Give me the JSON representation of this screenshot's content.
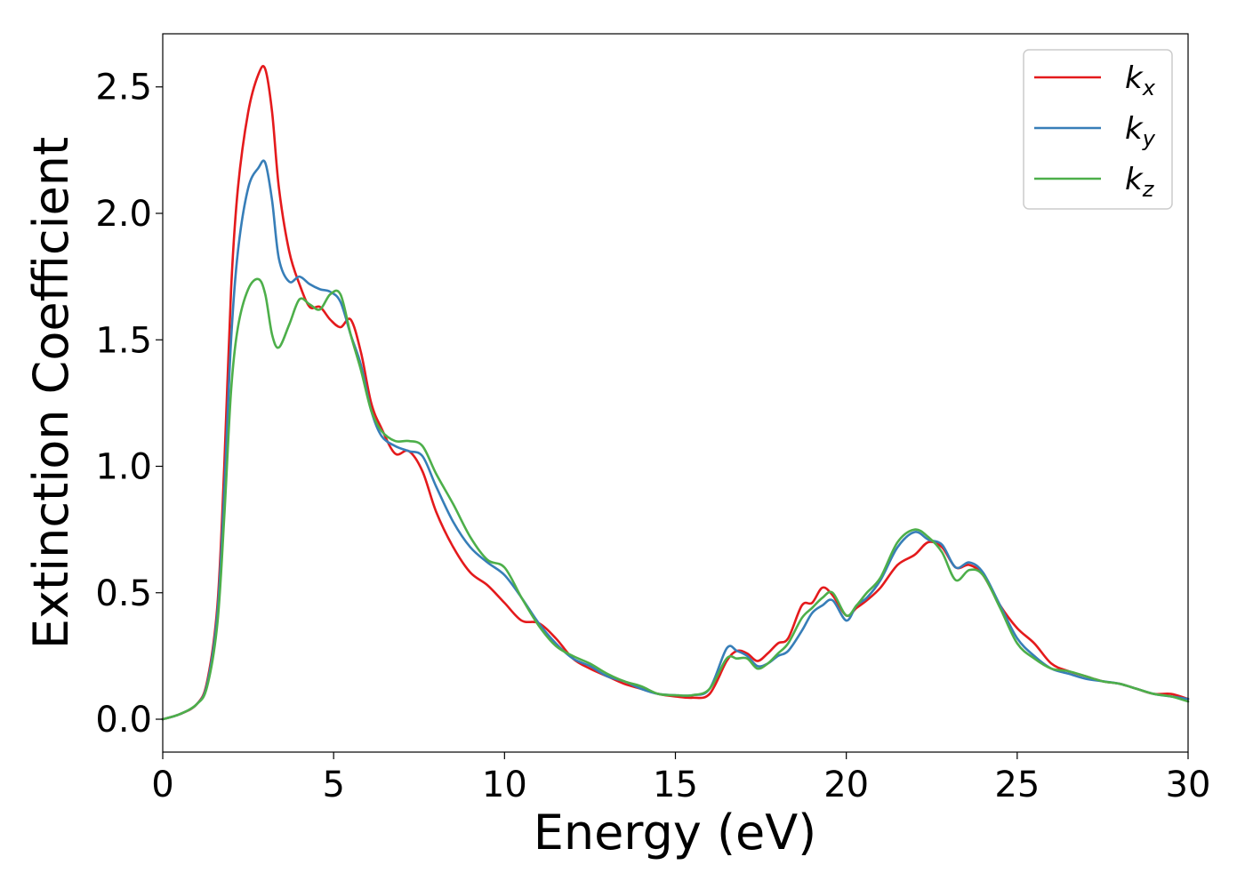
{
  "chart_data": {
    "type": "line",
    "title": "",
    "xlabel": "Energy (eV)",
    "ylabel": "Extinction Coefficient",
    "xlim": [
      0,
      30
    ],
    "ylim": [
      -0.13,
      2.71
    ],
    "xticks": [
      0,
      5,
      10,
      15,
      20,
      25,
      30
    ],
    "xtick_labels": [
      "0",
      "5",
      "10",
      "15",
      "20",
      "25",
      "30"
    ],
    "yticks": [
      0.0,
      0.5,
      1.0,
      1.5,
      2.0,
      2.5
    ],
    "ytick_labels": [
      "0.0",
      "0.5",
      "1.0",
      "1.5",
      "2.0",
      "2.5"
    ],
    "grid": false,
    "legend_position": "top-right",
    "series": [
      {
        "name": "k_x",
        "label_base": "k",
        "label_sub": "x",
        "color": "#e41a1c",
        "x": [
          0,
          0.5,
          1.0,
          1.3,
          1.6,
          1.8,
          2.0,
          2.2,
          2.5,
          2.8,
          3.0,
          3.2,
          3.4,
          3.7,
          4.0,
          4.3,
          4.6,
          4.9,
          5.2,
          5.5,
          5.8,
          6.1,
          6.4,
          6.8,
          7.2,
          7.6,
          8.0,
          8.5,
          9.0,
          9.5,
          10.0,
          10.5,
          11.0,
          11.5,
          12.0,
          12.5,
          13.0,
          13.5,
          14.0,
          14.5,
          15.0,
          15.5,
          16.0,
          16.5,
          16.8,
          17.1,
          17.4,
          17.7,
          18.0,
          18.3,
          18.7,
          19.0,
          19.3,
          19.6,
          20.0,
          20.3,
          20.6,
          21.0,
          21.5,
          22.0,
          22.4,
          22.8,
          23.2,
          23.6,
          24.0,
          24.5,
          25.0,
          25.5,
          26.0,
          26.5,
          27.0,
          27.5,
          28.0,
          28.5,
          29.0,
          29.5,
          30.0
        ],
        "y": [
          0.0,
          0.02,
          0.06,
          0.15,
          0.45,
          1.0,
          1.7,
          2.1,
          2.4,
          2.55,
          2.57,
          2.4,
          2.1,
          1.85,
          1.72,
          1.63,
          1.63,
          1.58,
          1.55,
          1.58,
          1.45,
          1.25,
          1.15,
          1.05,
          1.06,
          0.98,
          0.82,
          0.68,
          0.58,
          0.53,
          0.46,
          0.39,
          0.38,
          0.32,
          0.24,
          0.2,
          0.17,
          0.14,
          0.12,
          0.1,
          0.09,
          0.085,
          0.1,
          0.23,
          0.27,
          0.26,
          0.23,
          0.26,
          0.3,
          0.32,
          0.45,
          0.46,
          0.52,
          0.49,
          0.41,
          0.44,
          0.47,
          0.52,
          0.61,
          0.65,
          0.7,
          0.68,
          0.6,
          0.61,
          0.57,
          0.45,
          0.36,
          0.3,
          0.22,
          0.19,
          0.17,
          0.15,
          0.14,
          0.12,
          0.1,
          0.1,
          0.08
        ]
      },
      {
        "name": "k_y",
        "label_base": "k",
        "label_sub": "y",
        "color": "#377eb8",
        "x": [
          0,
          0.5,
          1.0,
          1.3,
          1.6,
          1.8,
          2.0,
          2.2,
          2.5,
          2.8,
          3.0,
          3.2,
          3.4,
          3.7,
          4.0,
          4.3,
          4.6,
          4.9,
          5.2,
          5.5,
          5.8,
          6.1,
          6.4,
          6.8,
          7.2,
          7.6,
          8.0,
          8.5,
          9.0,
          9.5,
          10.0,
          10.5,
          11.0,
          11.5,
          12.0,
          12.5,
          13.0,
          13.5,
          14.0,
          14.5,
          15.0,
          15.5,
          16.0,
          16.5,
          16.8,
          17.1,
          17.4,
          17.7,
          18.0,
          18.3,
          18.7,
          19.0,
          19.3,
          19.6,
          20.0,
          20.3,
          20.6,
          21.0,
          21.5,
          22.0,
          22.4,
          22.8,
          23.2,
          23.6,
          24.0,
          24.5,
          25.0,
          25.5,
          26.0,
          26.5,
          27.0,
          27.5,
          28.0,
          28.5,
          29.0,
          29.5,
          30.0
        ],
        "y": [
          0.0,
          0.02,
          0.06,
          0.14,
          0.42,
          0.9,
          1.5,
          1.85,
          2.1,
          2.18,
          2.2,
          2.05,
          1.82,
          1.73,
          1.75,
          1.72,
          1.7,
          1.69,
          1.65,
          1.52,
          1.4,
          1.22,
          1.12,
          1.08,
          1.06,
          1.04,
          0.92,
          0.78,
          0.68,
          0.62,
          0.57,
          0.48,
          0.38,
          0.3,
          0.24,
          0.21,
          0.17,
          0.15,
          0.12,
          0.1,
          0.095,
          0.095,
          0.12,
          0.28,
          0.27,
          0.25,
          0.21,
          0.22,
          0.25,
          0.27,
          0.35,
          0.42,
          0.45,
          0.47,
          0.39,
          0.45,
          0.48,
          0.55,
          0.68,
          0.74,
          0.71,
          0.69,
          0.6,
          0.62,
          0.58,
          0.45,
          0.32,
          0.25,
          0.2,
          0.18,
          0.16,
          0.15,
          0.14,
          0.12,
          0.1,
          0.09,
          0.08
        ]
      },
      {
        "name": "k_z",
        "label_base": "k",
        "label_sub": "z",
        "color": "#4daf4a",
        "x": [
          0,
          0.5,
          1.0,
          1.3,
          1.6,
          1.8,
          2.0,
          2.2,
          2.5,
          2.8,
          3.0,
          3.2,
          3.4,
          3.7,
          4.0,
          4.3,
          4.6,
          4.9,
          5.2,
          5.5,
          5.8,
          6.1,
          6.4,
          6.8,
          7.2,
          7.6,
          8.0,
          8.5,
          9.0,
          9.5,
          10.0,
          10.5,
          11.0,
          11.5,
          12.0,
          12.5,
          13.0,
          13.5,
          14.0,
          14.5,
          15.0,
          15.5,
          16.0,
          16.5,
          16.8,
          17.1,
          17.4,
          17.7,
          18.0,
          18.3,
          18.7,
          19.0,
          19.3,
          19.6,
          20.0,
          20.3,
          20.6,
          21.0,
          21.5,
          22.0,
          22.4,
          22.8,
          23.2,
          23.6,
          24.0,
          24.5,
          25.0,
          25.5,
          26.0,
          26.5,
          27.0,
          27.5,
          28.0,
          28.5,
          29.0,
          29.5,
          30.0
        ],
        "y": [
          0.0,
          0.02,
          0.06,
          0.13,
          0.38,
          0.8,
          1.3,
          1.55,
          1.7,
          1.74,
          1.68,
          1.52,
          1.47,
          1.56,
          1.66,
          1.64,
          1.62,
          1.68,
          1.68,
          1.52,
          1.38,
          1.22,
          1.14,
          1.1,
          1.1,
          1.08,
          0.97,
          0.85,
          0.72,
          0.63,
          0.6,
          0.48,
          0.37,
          0.29,
          0.25,
          0.22,
          0.18,
          0.15,
          0.13,
          0.1,
          0.095,
          0.095,
          0.12,
          0.24,
          0.24,
          0.24,
          0.2,
          0.22,
          0.26,
          0.3,
          0.4,
          0.44,
          0.48,
          0.5,
          0.41,
          0.45,
          0.5,
          0.56,
          0.7,
          0.75,
          0.72,
          0.66,
          0.55,
          0.59,
          0.57,
          0.44,
          0.3,
          0.24,
          0.2,
          0.19,
          0.17,
          0.15,
          0.14,
          0.12,
          0.1,
          0.09,
          0.07
        ]
      }
    ]
  }
}
